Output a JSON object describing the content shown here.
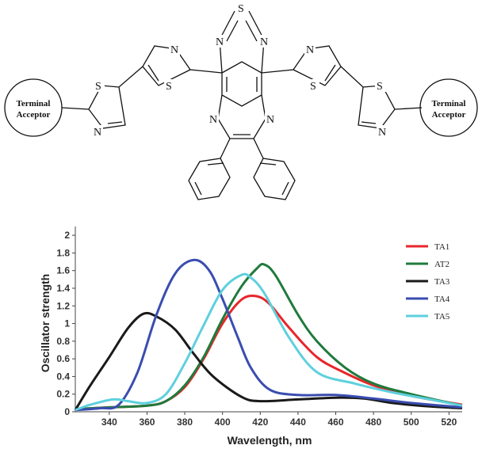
{
  "molecule": {
    "left_acceptor_line1": "Terminal",
    "left_acceptor_line2": "Acceptor",
    "right_acceptor_line1": "Terminal",
    "right_acceptor_line2": "Acceptor",
    "atoms": {
      "thiadiazole_s": "S",
      "thiadiazole_n_left": "N",
      "thiadiazole_n_right": "N",
      "pyrazine_n_left": "N",
      "pyrazine_n_right": "N",
      "inner_thiazole_left_n": "N",
      "inner_thiazole_left_s": "S",
      "inner_thiazole_right_n": "N",
      "inner_thiazole_right_s": "S",
      "outer_thiazole_left_s": "S",
      "outer_thiazole_left_n": "N",
      "outer_thiazole_right_s": "S",
      "outer_thiazole_right_n": "N"
    }
  },
  "chart_data": {
    "type": "line",
    "xlabel": "Wavelength, nm",
    "ylabel": "Oscillator strength",
    "xlim": [
      322,
      527
    ],
    "ylim": [
      0,
      2.1
    ],
    "xticks": [
      340,
      360,
      380,
      400,
      420,
      440,
      460,
      480,
      500,
      520
    ],
    "yticks": [
      0,
      0.2,
      0.4,
      0.6,
      0.8,
      1,
      1.2,
      1.4,
      1.6,
      1.8,
      2
    ],
    "ytick_labels": [
      "0",
      "0.2",
      "0.4",
      "0.6",
      "0.8",
      "1",
      "1.2",
      "1.4",
      "1.6",
      "1.8",
      "2"
    ],
    "legend_position": "top-right",
    "grid": false,
    "series": [
      {
        "name": "TA1",
        "color": "#e8262b",
        "points": [
          [
            322,
            0.03
          ],
          [
            340,
            0.05
          ],
          [
            360,
            0.07
          ],
          [
            370,
            0.12
          ],
          [
            380,
            0.28
          ],
          [
            390,
            0.6
          ],
          [
            400,
            1.0
          ],
          [
            410,
            1.27
          ],
          [
            418,
            1.31
          ],
          [
            425,
            1.22
          ],
          [
            435,
            0.96
          ],
          [
            450,
            0.62
          ],
          [
            465,
            0.44
          ],
          [
            480,
            0.3
          ],
          [
            500,
            0.18
          ],
          [
            527,
            0.08
          ]
        ]
      },
      {
        "name": "AT2",
        "color": "#1f7a3c",
        "points": [
          [
            322,
            0.03
          ],
          [
            340,
            0.05
          ],
          [
            360,
            0.07
          ],
          [
            370,
            0.12
          ],
          [
            380,
            0.3
          ],
          [
            390,
            0.62
          ],
          [
            400,
            1.05
          ],
          [
            410,
            1.42
          ],
          [
            418,
            1.62
          ],
          [
            422,
            1.67
          ],
          [
            428,
            1.55
          ],
          [
            440,
            1.1
          ],
          [
            450,
            0.8
          ],
          [
            465,
            0.5
          ],
          [
            480,
            0.32
          ],
          [
            500,
            0.2
          ],
          [
            527,
            0.07
          ]
        ]
      },
      {
        "name": "TA3",
        "color": "#1a1a1a",
        "points": [
          [
            322,
            0.02
          ],
          [
            330,
            0.3
          ],
          [
            340,
            0.62
          ],
          [
            350,
            0.95
          ],
          [
            358,
            1.11
          ],
          [
            365,
            1.08
          ],
          [
            375,
            0.93
          ],
          [
            385,
            0.65
          ],
          [
            395,
            0.4
          ],
          [
            410,
            0.17
          ],
          [
            420,
            0.12
          ],
          [
            440,
            0.14
          ],
          [
            460,
            0.16
          ],
          [
            475,
            0.15
          ],
          [
            490,
            0.1
          ],
          [
            510,
            0.06
          ],
          [
            527,
            0.04
          ]
        ]
      },
      {
        "name": "TA4",
        "color": "#3a4db0",
        "points": [
          [
            322,
            0.02
          ],
          [
            335,
            0.04
          ],
          [
            345,
            0.08
          ],
          [
            355,
            0.45
          ],
          [
            365,
            1.1
          ],
          [
            375,
            1.57
          ],
          [
            385,
            1.72
          ],
          [
            393,
            1.6
          ],
          [
            400,
            1.28
          ],
          [
            408,
            0.85
          ],
          [
            415,
            0.5
          ],
          [
            425,
            0.25
          ],
          [
            440,
            0.19
          ],
          [
            460,
            0.19
          ],
          [
            480,
            0.15
          ],
          [
            500,
            0.1
          ],
          [
            527,
            0.05
          ]
        ]
      },
      {
        "name": "TA5",
        "color": "#5ed0dd",
        "points": [
          [
            322,
            0.02
          ],
          [
            330,
            0.08
          ],
          [
            342,
            0.14
          ],
          [
            350,
            0.12
          ],
          [
            360,
            0.1
          ],
          [
            370,
            0.2
          ],
          [
            380,
            0.55
          ],
          [
            390,
            0.98
          ],
          [
            400,
            1.38
          ],
          [
            410,
            1.55
          ],
          [
            415,
            1.52
          ],
          [
            422,
            1.35
          ],
          [
            435,
            0.85
          ],
          [
            450,
            0.45
          ],
          [
            470,
            0.32
          ],
          [
            490,
            0.22
          ],
          [
            510,
            0.14
          ],
          [
            527,
            0.07
          ]
        ]
      }
    ]
  }
}
